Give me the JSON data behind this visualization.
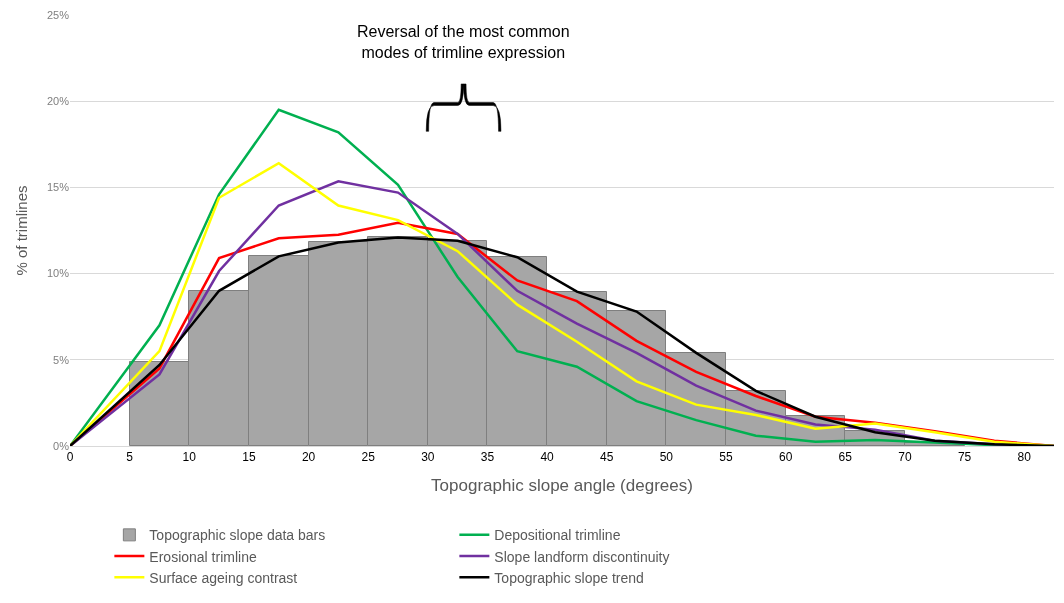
{
  "chart_data": {
    "type": "histogram",
    "xlabel": "Topographic slope angle (degrees)",
    "ylabel": "% of trimlines",
    "annotations": [
      "Reversal of the most common modes of trimline expression"
    ],
    "xlim": [
      0,
      82.5
    ],
    "xticks": [
      0,
      5,
      10,
      15,
      20,
      25,
      30,
      35,
      40,
      45,
      50,
      55,
      60,
      65,
      70,
      75,
      80
    ],
    "ylim": [
      0,
      25
    ],
    "yticks": [
      {
        "value": 0,
        "label": "0%"
      },
      {
        "value": 5,
        "label": "5%"
      },
      {
        "value": 10,
        "label": "10%"
      },
      {
        "value": 15,
        "label": "15%"
      },
      {
        "value": 20,
        "label": "20%"
      },
      {
        "value": 25,
        "label": "25%"
      }
    ],
    "grid": "y",
    "legend": "bottom",
    "series": [
      {
        "name": "Topographic slope data bars",
        "color": "#a6a6a6",
        "bins": [
          5,
          10,
          15,
          20,
          25,
          30,
          35,
          40,
          45,
          50,
          55,
          60,
          65,
          70,
          75
        ],
        "values": [
          4.85,
          9.0,
          11.0,
          11.85,
          12.1,
          11.9,
          10.95,
          8.95,
          7.85,
          5.4,
          3.2,
          1.75,
          0.85,
          0.2
        ]
      },
      {
        "type": "line",
        "name": "Depositional trimline",
        "color": "#00b050",
        "x": [
          0,
          7.5,
          12.5,
          17.5,
          22.5,
          27.5,
          32.5,
          37.5,
          42.5,
          47.5,
          52.5,
          57.5,
          62.5,
          67.5,
          72.5,
          77.5,
          82.5
        ],
        "values": [
          0,
          7.0,
          14.6,
          19.5,
          18.2,
          15.15,
          9.8,
          5.5,
          4.6,
          2.6,
          1.5,
          0.6,
          0.25,
          0.35,
          0.2,
          0.05,
          0
        ]
      },
      {
        "type": "line",
        "name": "Erosional trimline",
        "color": "#ff0000",
        "x": [
          0,
          7.5,
          12.5,
          17.5,
          22.5,
          27.5,
          32.5,
          37.5,
          42.5,
          47.5,
          52.5,
          57.5,
          62.5,
          67.5,
          72.5,
          77.5,
          82.5
        ],
        "values": [
          0,
          4.5,
          10.9,
          12.05,
          12.25,
          12.95,
          12.3,
          9.6,
          8.4,
          6.1,
          4.3,
          2.9,
          1.7,
          1.35,
          0.85,
          0.3,
          0
        ]
      },
      {
        "type": "line",
        "name": "Slope landform discontinuity",
        "color": "#7030a0",
        "x": [
          0,
          7.5,
          12.5,
          17.5,
          22.5,
          27.5,
          32.5,
          37.5,
          42.5,
          47.5,
          52.5,
          57.5,
          62.5,
          67.5,
          72.5,
          77.5,
          82.5
        ],
        "values": [
          0,
          4.15,
          10.15,
          13.95,
          15.35,
          14.7,
          12.3,
          9.0,
          7.1,
          5.4,
          3.5,
          2.05,
          1.25,
          0.95,
          0.3,
          0.1,
          0
        ]
      },
      {
        "type": "line",
        "name": "Surface ageing contrast",
        "color": "#ffff00",
        "x": [
          0,
          7.5,
          12.5,
          17.5,
          22.5,
          27.5,
          32.5,
          37.5,
          42.5,
          47.5,
          52.5,
          57.5,
          62.5,
          67.5,
          72.5,
          77.5,
          82.5
        ],
        "values": [
          0,
          5.5,
          14.4,
          16.4,
          13.95,
          13.1,
          11.3,
          8.2,
          6.05,
          3.75,
          2.4,
          1.8,
          1.0,
          1.3,
          0.8,
          0.25,
          0
        ]
      },
      {
        "type": "line",
        "name": "Topographic slope trend",
        "color": "#000000",
        "x": [
          0,
          7.5,
          12.5,
          17.5,
          22.5,
          27.5,
          32.5,
          37.5,
          42.5,
          47.5,
          52.5,
          57.5,
          62.5,
          67.5,
          72.5,
          77.5,
          82.5
        ],
        "values": [
          0,
          4.7,
          9.0,
          11.0,
          11.8,
          12.1,
          11.9,
          10.95,
          8.95,
          7.8,
          5.4,
          3.2,
          1.7,
          0.8,
          0.3,
          0.1,
          0
        ]
      }
    ]
  }
}
